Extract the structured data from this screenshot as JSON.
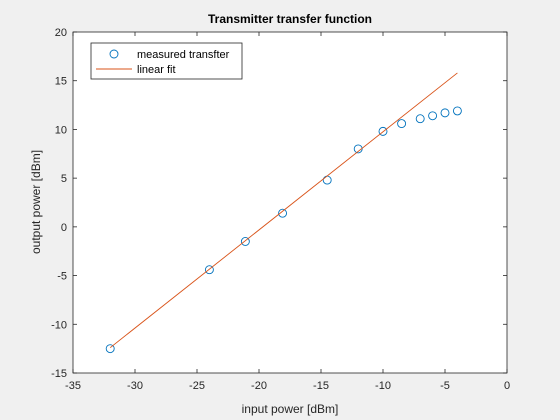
{
  "chart_data": {
    "type": "scatter",
    "title": "Transmitter transfer function",
    "xlabel": "input power [dBm]",
    "ylabel": "output power [dBm]",
    "xlim": [
      -35,
      0
    ],
    "ylim": [
      -15,
      20
    ],
    "xticks": [
      -35,
      -30,
      -25,
      -20,
      -15,
      -10,
      -5,
      0
    ],
    "yticks": [
      -15,
      -10,
      -5,
      0,
      5,
      10,
      15,
      20
    ],
    "xtick_labels": [
      "-35",
      "-30",
      "-25",
      "-20",
      "-15",
      "-10",
      "-5",
      "0"
    ],
    "ytick_labels": [
      "-15",
      "-10",
      "-5",
      "0",
      "5",
      "10",
      "15",
      "20"
    ],
    "grid": false,
    "legend_position": "top-left",
    "series": [
      {
        "name": "measured transfter",
        "kind": "markers",
        "color": "#0072bd",
        "x": [
          -32,
          -24,
          -21.1,
          -18.1,
          -14.5,
          -12,
          -10,
          -8.5,
          -7,
          -6,
          -5,
          -4
        ],
        "y": [
          -12.5,
          -4.4,
          -1.5,
          1.4,
          4.8,
          8.0,
          9.8,
          10.6,
          11.1,
          11.4,
          11.7,
          11.9
        ]
      },
      {
        "name": "linear fit",
        "kind": "line",
        "color": "#d95319",
        "x": [
          -32,
          -4
        ],
        "y": [
          -12.4,
          15.8
        ]
      }
    ]
  }
}
